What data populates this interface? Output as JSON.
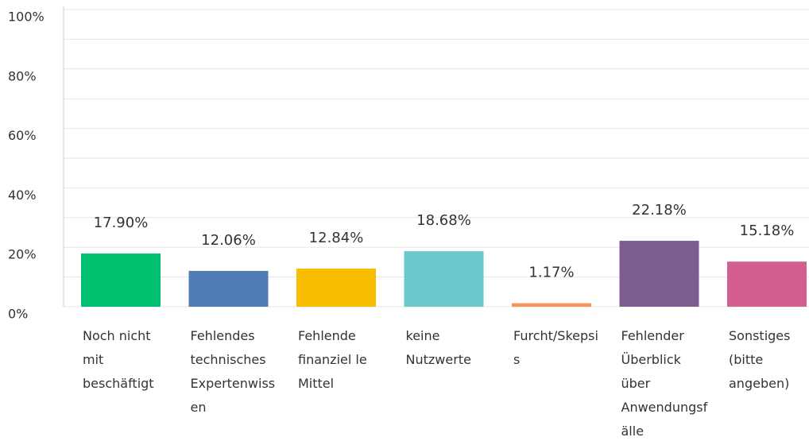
{
  "chart_data": {
    "type": "bar",
    "categories": [
      "Noch nicht mit beschäftigt",
      "Fehlendes technisches Expertenwissen",
      "Fehlende finanziel le Mittel",
      "keine Nutzwerte",
      "Furcht/Skepsis",
      "Fehlender Überblick über Anwendungsfälle",
      "Sonstiges (bitte angeben)"
    ],
    "values": [
      17.9,
      12.06,
      12.84,
      18.68,
      1.17,
      22.18,
      15.18
    ],
    "value_labels": [
      "17.90%",
      "12.06%",
      "12.84%",
      "18.68%",
      "1.17%",
      "22.18%",
      "15.18%"
    ],
    "colors": [
      "#00bf6f",
      "#507cb6",
      "#f9be00",
      "#6bc8cd",
      "#f99157",
      "#7d5c91",
      "#d25f90"
    ],
    "ylim": [
      0,
      100
    ],
    "yticks": [
      {
        "value": 0,
        "label": "0%"
      },
      {
        "value": 20,
        "label": "20%"
      },
      {
        "value": 40,
        "label": "40%"
      },
      {
        "value": 60,
        "label": "60%"
      },
      {
        "value": 80,
        "label": "80%"
      },
      {
        "value": 100,
        "label": "100%"
      }
    ],
    "minor_yticks": [
      10,
      30,
      50,
      70,
      90
    ],
    "grid": true
  }
}
